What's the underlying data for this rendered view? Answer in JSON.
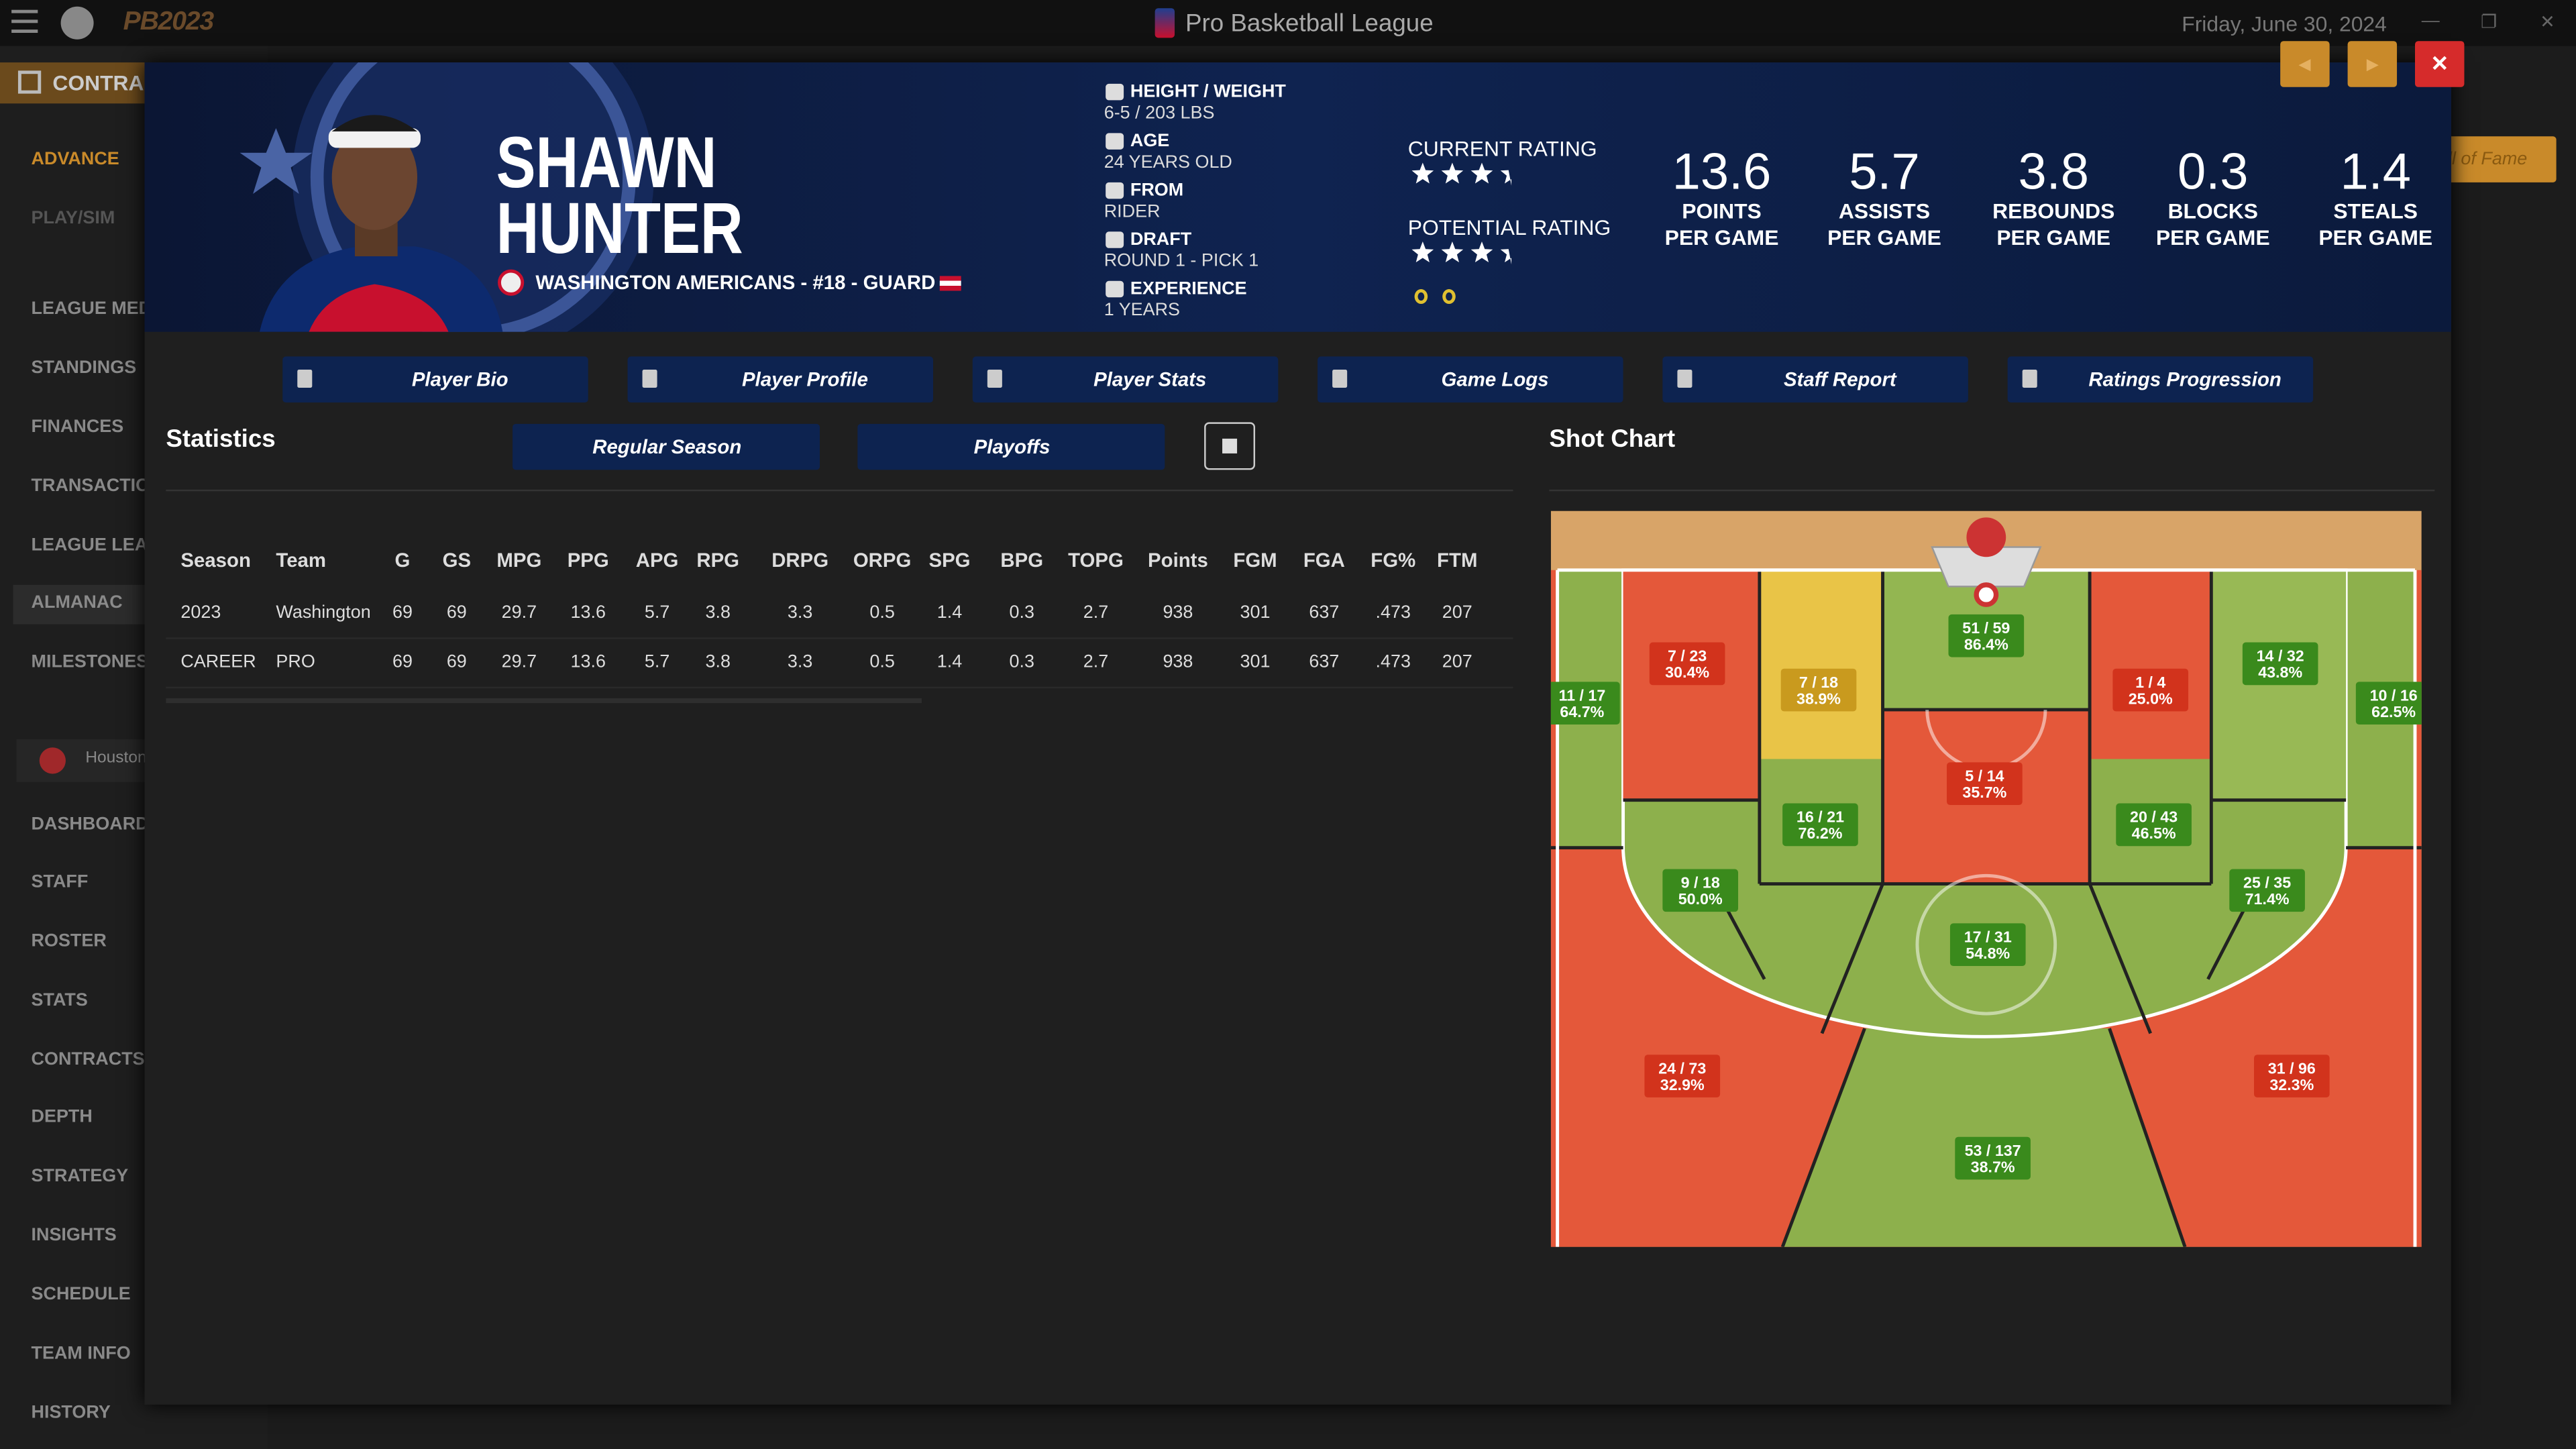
{
  "app": {
    "logo": "PB2023",
    "title": "Pro Basketball League",
    "date": "Friday, June 30, 2024"
  },
  "sidebar": {
    "section": "CONTRA",
    "items": [
      "ADVANCE",
      "PLAY/SIM",
      "LEAGUE MED",
      "STANDINGS",
      "FINANCES",
      "TRANSACTIO",
      "LEAGUE LEAD",
      "ALMANAC",
      "MILESTONES"
    ],
    "team": "Houston",
    "team_items": [
      "DASHBOARD",
      "STAFF",
      "ROSTER",
      "STATS",
      "CONTRACTS",
      "DEPTH",
      "STRATEGY",
      "INSIGHTS",
      "SCHEDULE",
      "TEAM INFO",
      "HISTORY"
    ]
  },
  "hall_of_fame": "ll of Fame",
  "player": {
    "first_name": "SHAWN",
    "last_name": "HUNTER",
    "team_line": "WASHINGTON AMERICANS - #18 - GUARD",
    "info": [
      {
        "label": "HEIGHT / WEIGHT",
        "value": "6-5 / 203 LBS"
      },
      {
        "label": "AGE",
        "value": "24 YEARS OLD"
      },
      {
        "label": "FROM",
        "value": "RIDER"
      },
      {
        "label": "DRAFT",
        "value": "ROUND 1 - PICK 1"
      },
      {
        "label": "EXPERIENCE",
        "value": "1 YEARS"
      }
    ],
    "ratings": [
      {
        "label": "CURRENT RATING",
        "stars": 3.5
      },
      {
        "label": "POTENTIAL RATING",
        "stars": 3.5
      }
    ],
    "stats": [
      {
        "value": "13.6",
        "label": [
          "POINTS",
          "PER GAME"
        ]
      },
      {
        "value": "5.7",
        "label": [
          "ASSISTS",
          "PER GAME"
        ]
      },
      {
        "value": "3.8",
        "label": [
          "REBOUNDS",
          "PER GAME"
        ]
      },
      {
        "value": "0.3",
        "label": [
          "BLOCKS",
          "PER GAME"
        ]
      },
      {
        "value": "1.4",
        "label": [
          "STEALS",
          "PER GAME"
        ]
      }
    ]
  },
  "tabs": [
    "Player Bio",
    "Player Profile",
    "Player Stats",
    "Game Logs",
    "Staff Report",
    "Ratings Progression"
  ],
  "statistics": {
    "title": "Statistics",
    "buttons": [
      "Regular Season",
      "Playoffs"
    ],
    "table": {
      "columns": [
        "Season",
        "Team",
        "G",
        "GS",
        "MPG",
        "PPG",
        "APG",
        "RPG",
        "DRPG",
        "ORPG",
        "SPG",
        "BPG",
        "TOPG",
        "Points",
        "FGM",
        "FGA",
        "FG%",
        "FTM"
      ],
      "rows": [
        [
          "2023",
          "Washington",
          "69",
          "69",
          "29.7",
          "13.6",
          "5.7",
          "3.8",
          "3.3",
          "0.5",
          "1.4",
          "0.3",
          "2.7",
          "938",
          "301",
          "637",
          ".473",
          "207"
        ],
        [
          "CAREER",
          "PRO",
          "69",
          "69",
          "29.7",
          "13.6",
          "5.7",
          "3.8",
          "3.3",
          "0.5",
          "1.4",
          "0.3",
          "2.7",
          "938",
          "301",
          "637",
          ".473",
          "207"
        ]
      ]
    }
  },
  "shot_chart": {
    "title": "Shot Chart",
    "zones": [
      {
        "made_attempts": "7 / 23",
        "pct": "30.4%",
        "color": "#d2331c"
      },
      {
        "made_attempts": "7 / 18",
        "pct": "38.9%",
        "color": "#c99a1e"
      },
      {
        "made_attempts": "51 / 59",
        "pct": "86.4%",
        "color": "#3a8a1c"
      },
      {
        "made_attempts": "1 / 4",
        "pct": "25.0%",
        "color": "#d2331c"
      },
      {
        "made_attempts": "14 / 32",
        "pct": "43.8%",
        "color": "#3a8a1c"
      },
      {
        "made_attempts": "11 / 17",
        "pct": "64.7%",
        "color": "#3a8a1c"
      },
      {
        "made_attempts": "10 / 16",
        "pct": "62.5%",
        "color": "#3a8a1c"
      },
      {
        "made_attempts": "5 / 14",
        "pct": "35.7%",
        "color": "#d2331c"
      },
      {
        "made_attempts": "16 / 21",
        "pct": "76.2%",
        "color": "#3a8a1c"
      },
      {
        "made_attempts": "20 / 43",
        "pct": "46.5%",
        "color": "#3a8a1c"
      },
      {
        "made_attempts": "9 / 18",
        "pct": "50.0%",
        "color": "#3a8a1c"
      },
      {
        "made_attempts": "25 / 35",
        "pct": "71.4%",
        "color": "#3a8a1c"
      },
      {
        "made_attempts": "17 / 31",
        "pct": "54.8%",
        "color": "#3a8a1c"
      },
      {
        "made_attempts": "24 / 73",
        "pct": "32.9%",
        "color": "#d2331c"
      },
      {
        "made_attempts": "31 / 96",
        "pct": "32.3%",
        "color": "#d2331c"
      },
      {
        "made_attempts": "53 / 137",
        "pct": "38.7%",
        "color": "#3a8a1c"
      }
    ]
  }
}
